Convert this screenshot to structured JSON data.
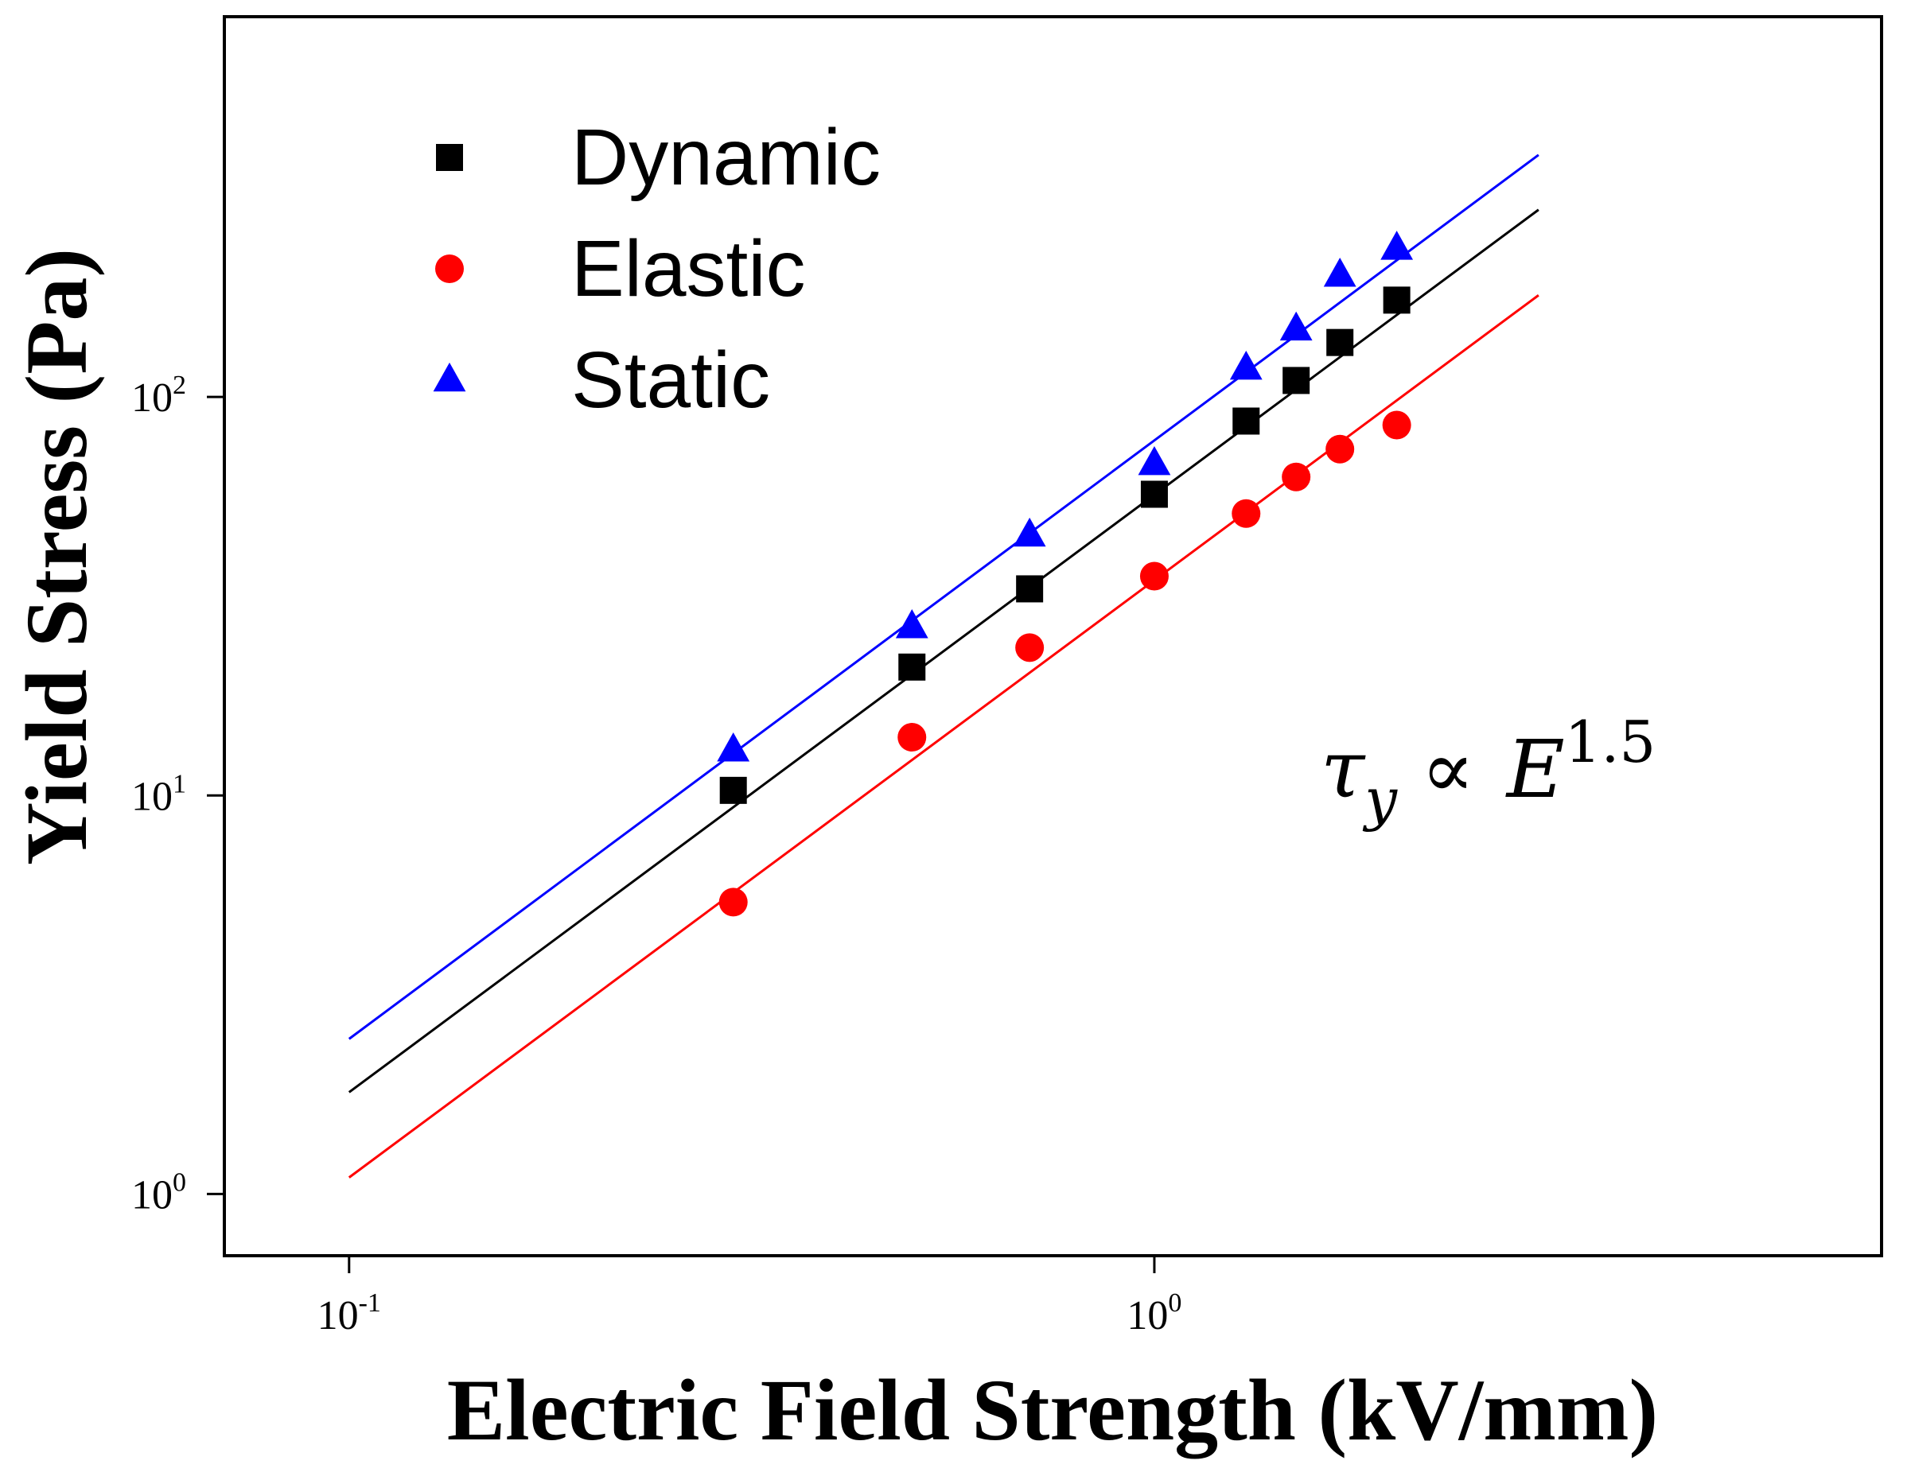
{
  "chart_data": {
    "type": "scatter",
    "title": "",
    "xlabel": "Electric Field Strength (kV/mm)",
    "ylabel": "Yield Stress (Pa)",
    "xscale": "log",
    "yscale": "log",
    "xlim": [
      0.07,
      8
    ],
    "ylim": [
      0.7,
      900
    ],
    "x_ticks": [
      {
        "value": 0.1,
        "base": "10",
        "exp": "-1"
      },
      {
        "value": 1,
        "base": "10",
        "exp": "0"
      }
    ],
    "y_ticks": [
      {
        "value": 1,
        "base": "10",
        "exp": "0"
      },
      {
        "value": 10,
        "base": "10",
        "exp": "1"
      },
      {
        "value": 100,
        "base": "10",
        "exp": "2"
      }
    ],
    "legend_position": "top-left",
    "annotation": {
      "tau": "τ",
      "sub": "y",
      "prop": "∝",
      "E": "E",
      "exp": "1.5"
    },
    "series": [
      {
        "name": "Dynamic",
        "marker": "square",
        "color": "#000000",
        "x": [
          0.3,
          0.5,
          0.7,
          1.0,
          1.3,
          1.5,
          1.7,
          2.0
        ],
        "y": [
          10.3,
          21,
          33,
          57,
          87,
          110,
          137,
          175
        ],
        "fit": {
          "x": [
            0.1,
            3.0
          ],
          "y": [
            1.8,
            295
          ]
        }
      },
      {
        "name": "Elastic",
        "marker": "circle",
        "color": "#ff0000",
        "x": [
          0.3,
          0.5,
          0.7,
          1.0,
          1.3,
          1.5,
          1.7,
          2.0
        ],
        "y": [
          5.4,
          14,
          23.5,
          35.5,
          51,
          63,
          74,
          85
        ],
        "fit": {
          "x": [
            0.1,
            3.0
          ],
          "y": [
            1.1,
            180
          ]
        }
      },
      {
        "name": "Static",
        "marker": "triangle",
        "color": "#0000ff",
        "x": [
          0.3,
          0.5,
          0.7,
          1.0,
          1.3,
          1.5,
          1.7,
          2.0
        ],
        "y": [
          13,
          26.5,
          45,
          68,
          118,
          148,
          202,
          236
        ],
        "fit": {
          "x": [
            0.1,
            3.0
          ],
          "y": [
            2.45,
            405
          ]
        }
      }
    ]
  }
}
